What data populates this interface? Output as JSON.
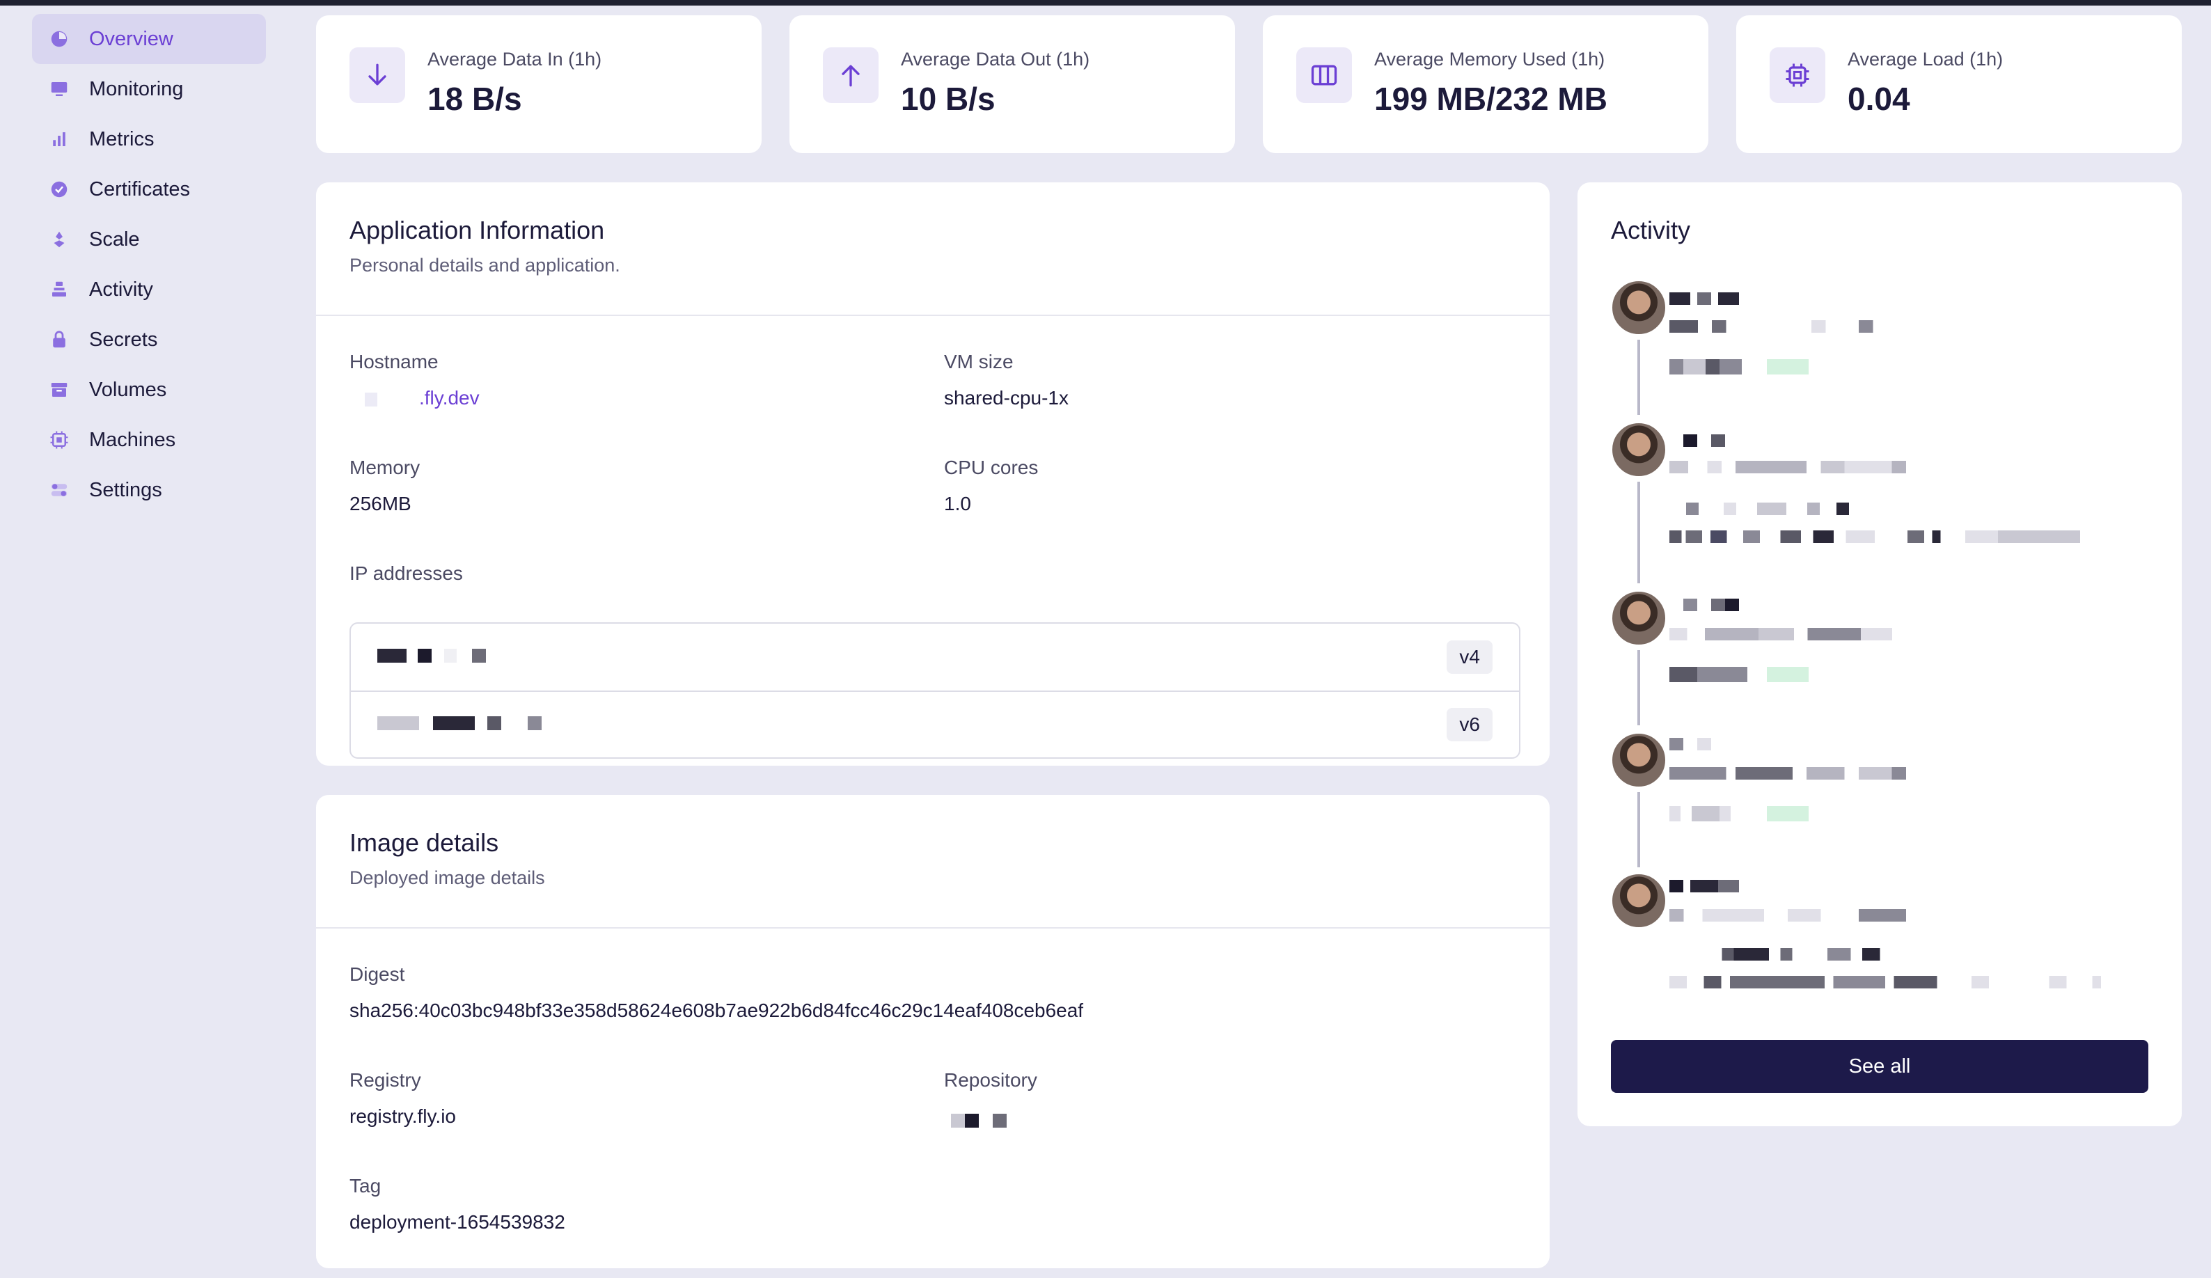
{
  "sidebar": {
    "items": [
      {
        "label": "Overview",
        "icon": "overview-icon",
        "active": true
      },
      {
        "label": "Monitoring",
        "icon": "monitor-icon"
      },
      {
        "label": "Metrics",
        "icon": "bar-chart-icon"
      },
      {
        "label": "Certificates",
        "icon": "badge-check-icon"
      },
      {
        "label": "Scale",
        "icon": "scale-icon"
      },
      {
        "label": "Activity",
        "icon": "stack-icon"
      },
      {
        "label": "Secrets",
        "icon": "lock-icon"
      },
      {
        "label": "Volumes",
        "icon": "archive-icon"
      },
      {
        "label": "Machines",
        "icon": "cpu-chip-icon"
      },
      {
        "label": "Settings",
        "icon": "toggles-icon"
      }
    ]
  },
  "stats": [
    {
      "label": "Average Data In (1h)",
      "value": "18 B/s",
      "icon": "arrow-down-icon"
    },
    {
      "label": "Average Data Out (1h)",
      "value": "10 B/s",
      "icon": "arrow-up-icon"
    },
    {
      "label": "Average Memory Used (1h)",
      "value": "199 MB/232 MB",
      "icon": "memory-columns-icon"
    },
    {
      "label": "Average Load (1h)",
      "value": "0.04",
      "icon": "cpu-chip-icon"
    }
  ],
  "app_info": {
    "title": "Application Information",
    "subtitle": "Personal details and application.",
    "hostname_label": "Hostname",
    "hostname_value": ".fly.dev",
    "vm_size_label": "VM size",
    "vm_size_value": "shared-cpu-1x",
    "memory_label": "Memory",
    "memory_value": "256MB",
    "cpu_label": "CPU cores",
    "cpu_value": "1.0",
    "ip_label": "IP addresses",
    "ips": [
      {
        "badge": "v4"
      },
      {
        "badge": "v6"
      }
    ]
  },
  "image_details": {
    "title": "Image details",
    "subtitle": "Deployed image details",
    "digest_label": "Digest",
    "digest_value": "sha256:40c03bc948bf33e358d58624e608b7ae922b6d84fcc46c29c14eaf408ceb6eaf",
    "registry_label": "Registry",
    "registry_value": "registry.fly.io",
    "repository_label": "Repository",
    "tag_label": "Tag",
    "tag_value": "deployment-1654539832"
  },
  "activity": {
    "title": "Activity",
    "see_all": "See all"
  },
  "colors": {
    "accent": "#6b3fd4",
    "background": "#e8e8f3",
    "button": "#1d1a4a"
  }
}
